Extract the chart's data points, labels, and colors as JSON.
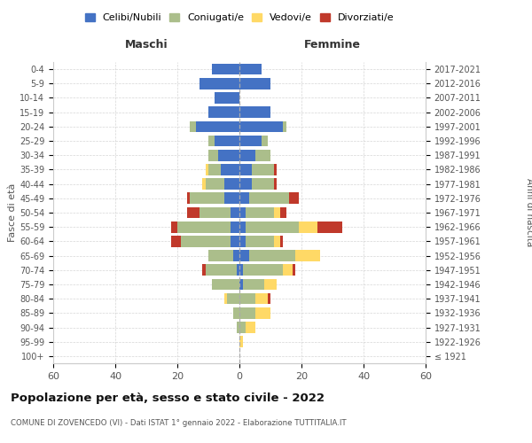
{
  "age_groups": [
    "100+",
    "95-99",
    "90-94",
    "85-89",
    "80-84",
    "75-79",
    "70-74",
    "65-69",
    "60-64",
    "55-59",
    "50-54",
    "45-49",
    "40-44",
    "35-39",
    "30-34",
    "25-29",
    "20-24",
    "15-19",
    "10-14",
    "5-9",
    "0-4"
  ],
  "birth_years": [
    "≤ 1921",
    "1922-1926",
    "1927-1931",
    "1932-1936",
    "1937-1941",
    "1942-1946",
    "1947-1951",
    "1952-1956",
    "1957-1961",
    "1962-1966",
    "1967-1971",
    "1972-1976",
    "1977-1981",
    "1982-1986",
    "1987-1991",
    "1992-1996",
    "1997-2001",
    "2002-2006",
    "2007-2011",
    "2012-2016",
    "2017-2021"
  ],
  "males": {
    "celibi": [
      0,
      0,
      0,
      0,
      0,
      0,
      1,
      2,
      3,
      3,
      3,
      5,
      5,
      6,
      7,
      8,
      14,
      10,
      8,
      13,
      9
    ],
    "coniugati": [
      0,
      0,
      1,
      2,
      4,
      9,
      10,
      8,
      16,
      17,
      10,
      11,
      6,
      4,
      3,
      2,
      2,
      0,
      0,
      0,
      0
    ],
    "vedovi": [
      0,
      0,
      0,
      0,
      1,
      0,
      0,
      0,
      0,
      0,
      0,
      0,
      1,
      1,
      0,
      0,
      0,
      0,
      0,
      0,
      0
    ],
    "divorziati": [
      0,
      0,
      0,
      0,
      0,
      0,
      1,
      0,
      3,
      2,
      4,
      1,
      0,
      0,
      0,
      0,
      0,
      0,
      0,
      0,
      0
    ]
  },
  "females": {
    "nubili": [
      0,
      0,
      0,
      0,
      0,
      1,
      1,
      3,
      2,
      2,
      2,
      3,
      4,
      4,
      5,
      7,
      14,
      10,
      0,
      10,
      7
    ],
    "coniugate": [
      0,
      0,
      2,
      5,
      5,
      7,
      13,
      15,
      9,
      17,
      9,
      13,
      7,
      7,
      5,
      2,
      1,
      0,
      0,
      0,
      0
    ],
    "vedove": [
      0,
      1,
      3,
      5,
      4,
      4,
      3,
      8,
      2,
      6,
      2,
      0,
      0,
      0,
      0,
      0,
      0,
      0,
      0,
      0,
      0
    ],
    "divorziate": [
      0,
      0,
      0,
      0,
      1,
      0,
      1,
      0,
      1,
      8,
      2,
      3,
      1,
      1,
      0,
      0,
      0,
      0,
      0,
      0,
      0
    ]
  },
  "colors": {
    "celibi": "#4472C4",
    "coniugati": "#ABBE8B",
    "vedovi": "#FFD966",
    "divorziati": "#C0392B"
  },
  "xlim": 60,
  "title": "Popolazione per età, sesso e stato civile - 2022",
  "subtitle": "COMUNE DI ZOVENCEDO (VI) - Dati ISTAT 1° gennaio 2022 - Elaborazione TUTTITALIA.IT",
  "ylabel_left": "Fasce di età",
  "ylabel_right": "Anni di nascita",
  "xlabel_maschi": "Maschi",
  "xlabel_femmine": "Femmine",
  "legend_labels": [
    "Celibi/Nubili",
    "Coniugati/e",
    "Vedovi/e",
    "Divorziati/e"
  ],
  "bg_color": "#ffffff",
  "grid_color": "#cccccc"
}
